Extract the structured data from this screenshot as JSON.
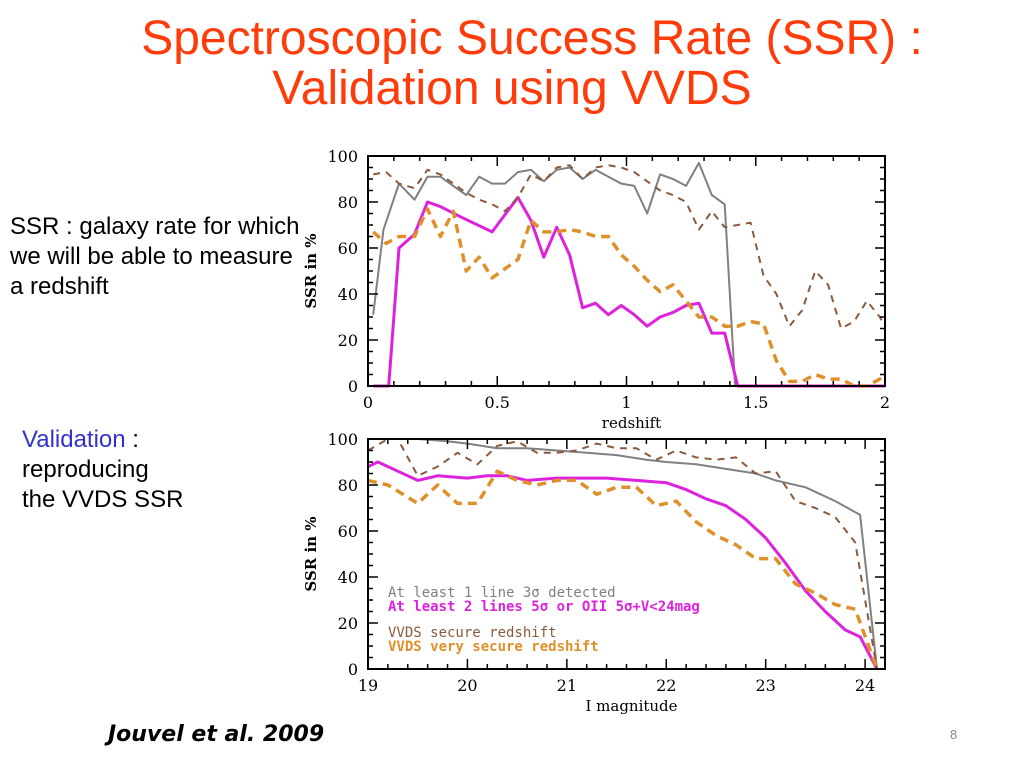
{
  "slide": {
    "title_line1": "Spectroscopic Success Rate (SSR) :",
    "title_line2": "Validation using VVDS",
    "definition_text": "SSR : galaxy rate for which we will be able to measure a redshift",
    "validation_label": "Validation",
    "validation_colon": " :",
    "validation_rest_line1": "reproducing",
    "validation_rest_line2": "the VVDS SSR",
    "citation": "Jouvel et al. 2009",
    "page_number": "8",
    "colors": {
      "title": "#ff3b0a",
      "accent": "#3333cc",
      "gray_series": "#808080",
      "magenta_series": "#dd22dd",
      "brown_series": "#8b5a3c",
      "orange_series": "#e0902a"
    }
  },
  "chart_data": [
    {
      "type": "line",
      "title": "",
      "xlabel": "redshift",
      "ylabel": "SSR in %",
      "xlim": [
        0,
        2
      ],
      "ylim": [
        0,
        100
      ],
      "xticks": [
        "0",
        "0.5",
        "1",
        "1.5",
        "2"
      ],
      "xtick_values": [
        0,
        0.5,
        1,
        1.5,
        2
      ],
      "yticks": [
        "0",
        "20",
        "40",
        "60",
        "80",
        "100"
      ],
      "ytick_values": [
        0,
        20,
        40,
        60,
        80,
        100
      ],
      "grid": false,
      "series": [
        {
          "name": "At least 1 line 3σ detected",
          "style": "solid-gray",
          "x": [
            0.02,
            0.06,
            0.12,
            0.18,
            0.23,
            0.28,
            0.33,
            0.38,
            0.43,
            0.48,
            0.53,
            0.58,
            0.63,
            0.68,
            0.73,
            0.78,
            0.83,
            0.88,
            0.93,
            0.98,
            1.03,
            1.08,
            1.13,
            1.18,
            1.23,
            1.28,
            1.33,
            1.38,
            1.42
          ],
          "y": [
            31,
            68,
            88,
            81,
            91,
            91,
            87,
            83,
            91,
            88,
            88,
            93,
            94,
            89,
            94,
            95,
            90,
            94,
            91,
            88,
            87,
            75,
            92,
            90,
            87,
            97,
            83,
            79,
            0
          ]
        },
        {
          "name": "At least 2 lines 5σ or OII 5σ+V<24mag",
          "style": "solid-magenta",
          "x": [
            0.02,
            0.08,
            0.12,
            0.18,
            0.23,
            0.28,
            0.35,
            0.48,
            0.58,
            0.63,
            0.68,
            0.73,
            0.78,
            0.83,
            0.88,
            0.93,
            0.98,
            1.03,
            1.08,
            1.13,
            1.18,
            1.23,
            1.28,
            1.33,
            1.38,
            1.43,
            1.5,
            1.6,
            1.7,
            1.8,
            1.9,
            2.0
          ],
          "y": [
            0,
            0,
            60,
            66,
            80,
            78,
            74,
            67,
            82,
            72,
            56,
            69,
            57,
            34,
            36,
            31,
            35,
            31,
            26,
            30,
            32,
            35,
            36,
            23,
            23,
            0,
            0,
            0,
            0,
            0,
            0,
            0
          ]
        },
        {
          "name": "VVDS secure redshift",
          "style": "dashed-brown",
          "x": [
            0.02,
            0.07,
            0.12,
            0.18,
            0.23,
            0.28,
            0.33,
            0.38,
            0.43,
            0.48,
            0.53,
            0.58,
            0.63,
            0.68,
            0.73,
            0.78,
            0.83,
            0.88,
            0.93,
            0.98,
            1.03,
            1.08,
            1.13,
            1.18,
            1.23,
            1.28,
            1.33,
            1.38,
            1.43,
            1.48,
            1.53,
            1.58,
            1.63,
            1.68,
            1.73,
            1.78,
            1.83,
            1.88,
            1.93,
            1.98,
            2.0
          ],
          "y": [
            92,
            93,
            88,
            86,
            94,
            92,
            88,
            84,
            81,
            79,
            76,
            82,
            92,
            89,
            95,
            96,
            90,
            95,
            96,
            95,
            93,
            89,
            85,
            83,
            80,
            68,
            76,
            69,
            70,
            71,
            48,
            40,
            26,
            33,
            50,
            44,
            25,
            28,
            37,
            30,
            26
          ]
        },
        {
          "name": "VVDS very secure redshift",
          "style": "dashed-orange",
          "x": [
            0.02,
            0.07,
            0.12,
            0.18,
            0.23,
            0.28,
            0.33,
            0.38,
            0.43,
            0.48,
            0.53,
            0.58,
            0.63,
            0.68,
            0.73,
            0.78,
            0.83,
            0.88,
            0.93,
            0.98,
            1.03,
            1.08,
            1.13,
            1.18,
            1.23,
            1.28,
            1.33,
            1.38,
            1.43,
            1.48,
            1.53,
            1.58,
            1.63,
            1.68,
            1.73,
            1.78,
            1.83,
            1.88,
            1.93,
            1.98,
            2.0
          ],
          "y": [
            67,
            62,
            65,
            65,
            77,
            65,
            76,
            50,
            56,
            47,
            51,
            55,
            72,
            67,
            67,
            68,
            67,
            65,
            65,
            57,
            52,
            46,
            41,
            44,
            37,
            30,
            30,
            26,
            26,
            28,
            27,
            11,
            2,
            2,
            5,
            3,
            3,
            0,
            0,
            3,
            0
          ]
        }
      ]
    },
    {
      "type": "line",
      "title": "",
      "xlabel": "I magnitude",
      "ylabel": "SSR in %",
      "xlim": [
        19,
        24.2
      ],
      "ylim": [
        0,
        100
      ],
      "xticks": [
        "19",
        "20",
        "21",
        "22",
        "23",
        "24"
      ],
      "xtick_values": [
        19,
        20,
        21,
        22,
        23,
        24
      ],
      "yticks": [
        "0",
        "20",
        "40",
        "60",
        "80",
        "100"
      ],
      "ytick_values": [
        0,
        20,
        40,
        60,
        80,
        100
      ],
      "grid": false,
      "legend_placement": "bottom-left",
      "series": [
        {
          "name": "At least 1 line 3σ detected",
          "style": "solid-gray",
          "x": [
            19.0,
            19.2,
            19.5,
            19.8,
            20.0,
            20.3,
            20.6,
            20.9,
            21.2,
            21.5,
            21.8,
            22.0,
            22.3,
            22.6,
            22.9,
            23.1,
            23.4,
            23.7,
            23.95,
            24.12
          ],
          "y": [
            100,
            100,
            100,
            99,
            98,
            96,
            96,
            95,
            94,
            93,
            91,
            90,
            89,
            87,
            85,
            82,
            79,
            73,
            67,
            0
          ]
        },
        {
          "name": "At least 2 lines 5σ or OII 5σ+V<24mag",
          "style": "solid-magenta",
          "x": [
            19.0,
            19.1,
            19.3,
            19.5,
            19.7,
            20.0,
            20.2,
            20.4,
            20.6,
            20.9,
            21.2,
            21.4,
            21.7,
            22.0,
            22.2,
            22.4,
            22.6,
            22.8,
            23.0,
            23.2,
            23.4,
            23.6,
            23.8,
            23.95,
            24.12
          ],
          "y": [
            88,
            90,
            86,
            82,
            84,
            83,
            84,
            84,
            82,
            83,
            83,
            83,
            82,
            81,
            78,
            74,
            71,
            65,
            57,
            46,
            34,
            25,
            17,
            14,
            0
          ]
        },
        {
          "name": "VVDS secure redshift",
          "style": "dashed-brown",
          "x": [
            19.0,
            19.2,
            19.3,
            19.5,
            19.7,
            19.9,
            20.1,
            20.3,
            20.5,
            20.7,
            20.9,
            21.1,
            21.3,
            21.5,
            21.7,
            21.9,
            22.1,
            22.3,
            22.5,
            22.7,
            22.9,
            23.1,
            23.3,
            23.5,
            23.7,
            23.9,
            24.12
          ],
          "y": [
            95,
            100,
            100,
            84,
            88,
            94,
            89,
            97,
            99,
            94,
            94,
            95,
            98,
            96,
            96,
            91,
            95,
            92,
            91,
            92,
            85,
            86,
            73,
            70,
            66,
            55,
            0
          ]
        },
        {
          "name": "VVDS very secure redshift",
          "style": "dashed-orange",
          "x": [
            19.0,
            19.2,
            19.5,
            19.7,
            19.9,
            20.1,
            20.3,
            20.5,
            20.7,
            20.9,
            21.1,
            21.3,
            21.5,
            21.7,
            21.9,
            22.1,
            22.3,
            22.5,
            22.7,
            22.9,
            23.1,
            23.3,
            23.5,
            23.7,
            23.9,
            24.12
          ],
          "y": [
            82,
            80,
            72,
            80,
            72,
            72,
            86,
            82,
            80,
            82,
            82,
            76,
            79,
            79,
            71,
            73,
            64,
            58,
            54,
            48,
            48,
            37,
            33,
            28,
            26,
            0
          ]
        }
      ]
    }
  ]
}
